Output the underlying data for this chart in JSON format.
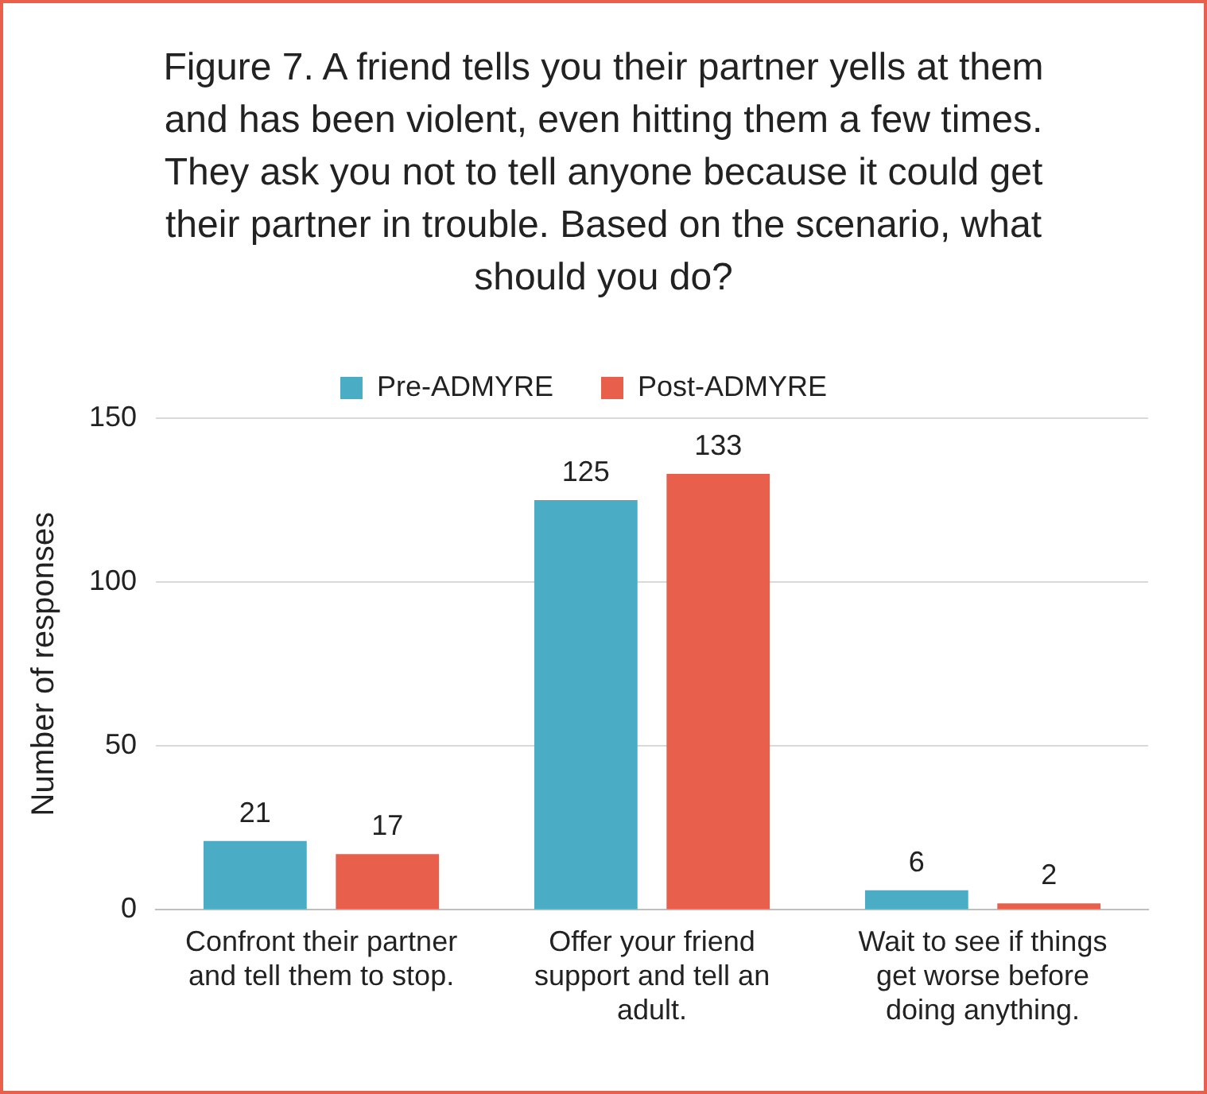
{
  "chart_data": {
    "type": "bar",
    "title": "Figure 7. A friend tells you their partner yells at them and has been violent, even hitting them a few times. They ask you not to tell anyone because it could get their partner in trouble. Based on the scenario, what should you do?",
    "ylabel": "Number of responses",
    "categories": [
      "Confront their partner and tell them to stop.",
      "Offer your friend support and tell an adult.",
      "Wait to see if things get worse before doing anything."
    ],
    "series": [
      {
        "name": "Pre-ADMYRE",
        "color": "#4bacc6",
        "values": [
          21,
          125,
          6
        ]
      },
      {
        "name": "Post-ADMYRE",
        "color": "#e8604c",
        "values": [
          17,
          133,
          2
        ]
      }
    ],
    "ylim": [
      0,
      150
    ],
    "yticks": [
      0,
      50,
      100,
      150
    ],
    "grid": "y",
    "legend": "top",
    "data_labels": true
  }
}
